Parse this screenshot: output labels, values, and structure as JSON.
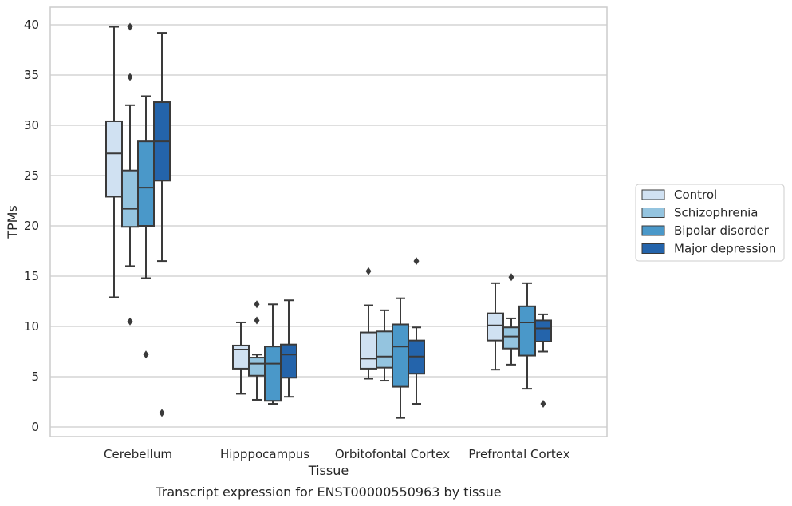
{
  "chart_data": {
    "type": "box",
    "xlabel": "Tissue",
    "ylabel": "TPMs",
    "caption": "Transcript expression for ENST00000550963 by tissue",
    "ylim": [
      -1,
      42
    ],
    "yticks": [
      0,
      5,
      10,
      15,
      20,
      25,
      30,
      35,
      40
    ],
    "grid": "horizontal",
    "legend_position": "right",
    "categories": [
      "Cerebellum",
      "Hipppocampus",
      "Orbitofontal Cortex",
      "Prefrontal Cortex"
    ],
    "series": [
      {
        "name": "Control",
        "color": "#d0e1f2",
        "boxes": [
          {
            "whislo": 12.9,
            "q1": 22.9,
            "med": 27.2,
            "q3": 30.4,
            "whishi": 39.8,
            "fliers": []
          },
          {
            "whislo": 3.3,
            "q1": 5.8,
            "med": 7.7,
            "q3": 8.1,
            "whishi": 10.4,
            "fliers": []
          },
          {
            "whislo": 4.8,
            "q1": 5.8,
            "med": 6.8,
            "q3": 9.4,
            "whishi": 12.1,
            "fliers": [
              15.5
            ]
          },
          {
            "whislo": 5.7,
            "q1": 8.6,
            "med": 10.1,
            "q3": 11.3,
            "whishi": 14.3,
            "fliers": []
          }
        ]
      },
      {
        "name": "Schizophrenia",
        "color": "#94c4df",
        "boxes": [
          {
            "whislo": 16.0,
            "q1": 19.9,
            "med": 21.7,
            "q3": 25.5,
            "whishi": 32.0,
            "fliers": [
              39.8,
              34.8,
              10.5
            ]
          },
          {
            "whislo": 2.7,
            "q1": 5.1,
            "med": 6.3,
            "q3": 6.9,
            "whishi": 7.2,
            "fliers": [
              12.2,
              10.6
            ]
          },
          {
            "whislo": 4.6,
            "q1": 5.9,
            "med": 7.0,
            "q3": 9.5,
            "whishi": 11.6,
            "fliers": []
          },
          {
            "whislo": 6.2,
            "q1": 7.8,
            "med": 9.0,
            "q3": 9.9,
            "whishi": 10.8,
            "fliers": [
              14.9
            ]
          }
        ]
      },
      {
        "name": "Bipolar disorder",
        "color": "#4a98c9",
        "boxes": [
          {
            "whislo": 14.8,
            "q1": 20.0,
            "med": 23.8,
            "q3": 28.4,
            "whishi": 32.9,
            "fliers": [
              7.2
            ]
          },
          {
            "whislo": 2.3,
            "q1": 2.6,
            "med": 6.3,
            "q3": 8.0,
            "whishi": 12.2,
            "fliers": []
          },
          {
            "whislo": 0.9,
            "q1": 4.0,
            "med": 8.0,
            "q3": 10.2,
            "whishi": 12.8,
            "fliers": []
          },
          {
            "whislo": 3.8,
            "q1": 7.1,
            "med": 10.4,
            "q3": 12.0,
            "whishi": 14.3,
            "fliers": []
          }
        ]
      },
      {
        "name": "Major depression",
        "color": "#2464ab",
        "boxes": [
          {
            "whislo": 16.5,
            "q1": 24.5,
            "med": 28.4,
            "q3": 32.3,
            "whishi": 39.2,
            "fliers": [
              1.4
            ]
          },
          {
            "whislo": 3.0,
            "q1": 4.9,
            "med": 7.2,
            "q3": 8.2,
            "whishi": 12.6,
            "fliers": []
          },
          {
            "whislo": 2.3,
            "q1": 5.3,
            "med": 7.0,
            "q3": 8.6,
            "whishi": 9.9,
            "fliers": [
              16.5
            ]
          },
          {
            "whislo": 7.5,
            "q1": 8.5,
            "med": 9.8,
            "q3": 10.6,
            "whishi": 11.2,
            "fliers": [
              2.3
            ]
          }
        ]
      }
    ]
  }
}
